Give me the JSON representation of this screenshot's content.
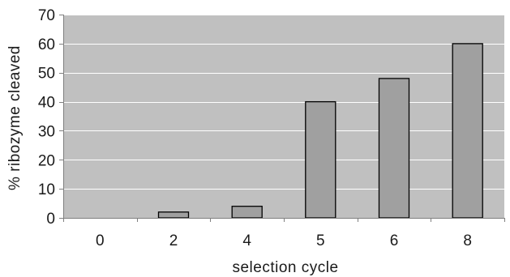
{
  "chart_data": {
    "type": "bar",
    "categories": [
      "0",
      "2",
      "4",
      "5",
      "6",
      "8"
    ],
    "values": [
      0,
      2,
      4,
      40,
      48,
      60
    ],
    "title": "",
    "xlabel": "selection cycle",
    "ylabel": "% ribozyme cleaved",
    "ylim": [
      0,
      70
    ],
    "yticks": [
      0,
      10,
      20,
      30,
      40,
      50,
      60,
      70
    ],
    "grid": true,
    "legend": "none",
    "colors": {
      "plot_background": "#c0c0c0",
      "bar_fill": "#a0a0a0",
      "bar_stroke": "#000000",
      "gridline": "#ffffff",
      "axis": "#808080"
    }
  }
}
